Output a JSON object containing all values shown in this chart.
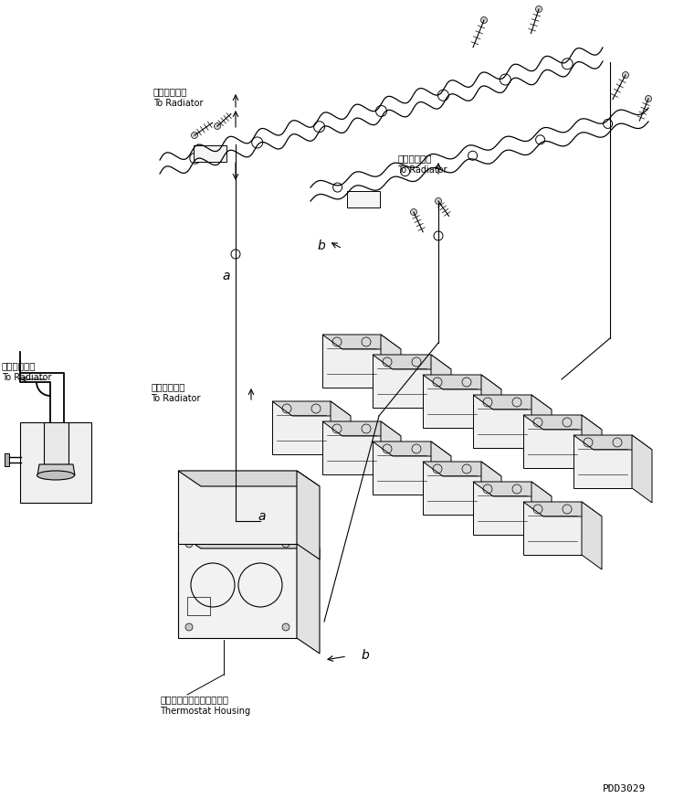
{
  "fig_width": 7.49,
  "fig_height": 8.73,
  "dpi": 100,
  "bg_color": "#ffffff",
  "line_color": "#000000",
  "watermark": "PDD3029",
  "labels": {
    "radiator_top_jp": "ラジエータへ",
    "radiator_top_en": "To Radiator",
    "radiator_mid_jp": "ラジエータへ",
    "radiator_mid_en": "To Radiator",
    "radiator_left_jp": "ラジエータへ",
    "radiator_left_en": "To Radiator",
    "radiator_lower_jp": "ラジエータへ",
    "radiator_lower_en": "To Radiator",
    "thermostat_jp": "サーモスタットハウジング",
    "thermostat_en": "Thermostat Housing",
    "label_a1": "a",
    "label_a2": "a",
    "label_b1": "b",
    "label_b2": "b"
  }
}
